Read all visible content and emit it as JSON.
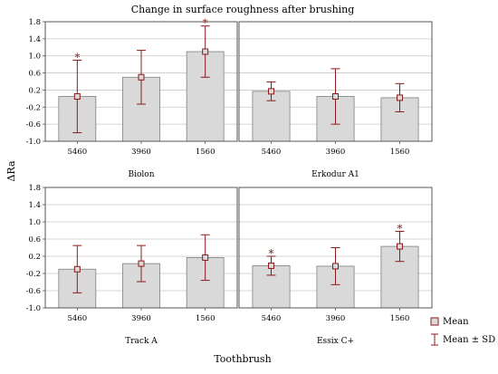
{
  "chart_data": {
    "type": "bar",
    "title": "Change in surface roughness after brushing",
    "ylabel": "ΔRa",
    "xlabel": "Toothbrush",
    "categories": [
      "5460",
      "3960",
      "1560"
    ],
    "y_ticks": [
      1.8,
      1.4,
      1.0,
      0.6,
      0.2,
      -0.2,
      -0.6,
      -1.0
    ],
    "y_tick_labels": [
      "1.8",
      "1.4",
      "1.0",
      "0.6",
      "0.2",
      "-0.2",
      "-0.6",
      "-1.0"
    ],
    "ylim": [
      -1.0,
      1.8
    ],
    "grid": true,
    "legend_position": "bottom-right",
    "legend": {
      "mean": "Mean",
      "sd": "Mean ± SD"
    },
    "significance_marker": "*",
    "colors": {
      "bar_fill": "#d9d9d9",
      "bar_stroke": "#7f7f7f",
      "error": "#8b1a1a",
      "grid": "#c8c8c8",
      "frame": "#555555"
    },
    "panels": [
      {
        "label": "Biolon",
        "mean": [
          0.05,
          0.5,
          1.1
        ],
        "sd": [
          0.85,
          0.63,
          0.6
        ],
        "significant": [
          true,
          false,
          true
        ]
      },
      {
        "label": "Erkodur A1",
        "mean": [
          0.17,
          0.05,
          0.02
        ],
        "sd": [
          0.22,
          0.65,
          0.33
        ],
        "significant": [
          false,
          false,
          false
        ]
      },
      {
        "label": "Track A",
        "mean": [
          -0.1,
          0.03,
          0.17
        ],
        "sd": [
          0.55,
          0.42,
          0.53
        ],
        "significant": [
          false,
          false,
          false
        ]
      },
      {
        "label": "Essix C+",
        "mean": [
          -0.02,
          -0.03,
          0.43
        ],
        "sd": [
          0.22,
          0.43,
          0.35
        ],
        "significant": [
          true,
          false,
          true
        ]
      }
    ]
  }
}
